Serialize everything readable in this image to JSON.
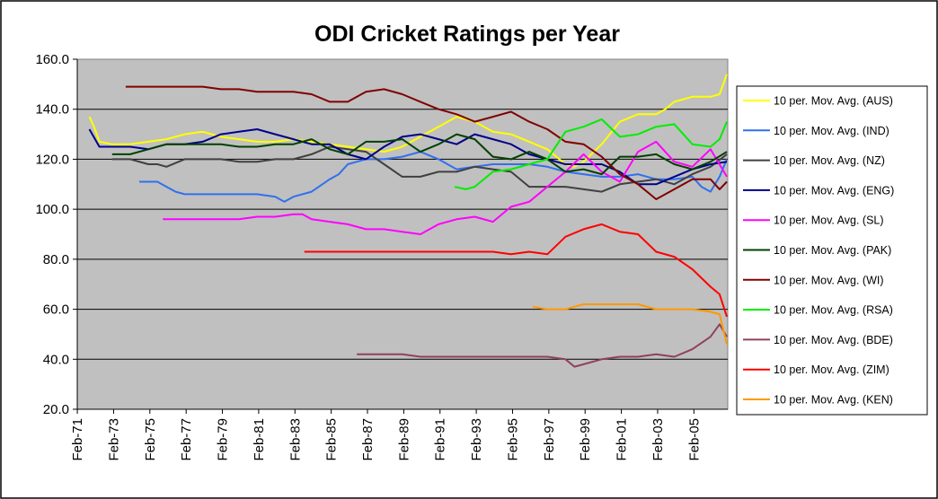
{
  "chart_data": {
    "type": "line",
    "title": "ODI Cricket Ratings per Year",
    "xlabel": "",
    "ylabel": "",
    "ylim": [
      20,
      160
    ],
    "yticks": [
      "20.0",
      "40.0",
      "60.0",
      "80.0",
      "100.0",
      "120.0",
      "140.0",
      "160.0"
    ],
    "xlim": [
      1971.08,
      2006.95
    ],
    "xticks": [
      "Feb-71",
      "Feb-73",
      "Feb-75",
      "Feb-77",
      "Feb-79",
      "Feb-81",
      "Feb-83",
      "Feb-85",
      "Feb-87",
      "Feb-89",
      "Feb-91",
      "Feb-93",
      "Feb-95",
      "Feb-97",
      "Feb-99",
      "Feb-01",
      "Feb-03",
      "Feb-05"
    ],
    "grid": "horizontal",
    "legend_position": "right",
    "plot_background": "#c0c0c0",
    "series": [
      {
        "name": "10 per. Mov. Avg. (AUS)",
        "color": "#ffff00",
        "x": [
          1971.75,
          1972.0,
          1972.3,
          1973.0,
          1974.0,
          1975.0,
          1976.0,
          1977.0,
          1978.0,
          1979.0,
          1980.0,
          1981.0,
          1982.0,
          1983.0,
          1984.0,
          1985.0,
          1986.0,
          1987.0,
          1988.0,
          1989.0,
          1990.0,
          1991.0,
          1992.0,
          1993.0,
          1994.0,
          1995.0,
          1996.0,
          1997.0,
          1997.5,
          1998.0,
          1998.5,
          1999.0,
          2000.0,
          2001.0,
          2002.0,
          2003.0,
          2003.5,
          2004.0,
          2005.0,
          2006.0,
          2006.5,
          2006.9
        ],
        "y": [
          137,
          133,
          127,
          126,
          126,
          127,
          128,
          130,
          131,
          129,
          128,
          127,
          127,
          128,
          127,
          126,
          125,
          124,
          123,
          125,
          129,
          133,
          137,
          135,
          131,
          130,
          127,
          124,
          121,
          118,
          117,
          119,
          126,
          135,
          138,
          138,
          140,
          143,
          145,
          145,
          146,
          154
        ]
      },
      {
        "name": "10 per. Mov. Avg. (IND)",
        "color": "#3070ee",
        "x": [
          1974.5,
          1975.0,
          1975.5,
          1976.0,
          1976.5,
          1977.0,
          1978.0,
          1979.0,
          1980.0,
          1981.0,
          1982.0,
          1982.5,
          1983.0,
          1984.0,
          1985.0,
          1985.5,
          1986.0,
          1986.5,
          1987.0,
          1988.0,
          1989.0,
          1990.0,
          1991.0,
          1992.0,
          1993.0,
          1994.0,
          1995.0,
          1996.0,
          1997.0,
          1998.0,
          1999.0,
          2000.0,
          2001.0,
          2002.0,
          2003.0,
          2004.0,
          2005.0,
          2005.5,
          2006.0,
          2006.5,
          2006.9
        ],
        "y": [
          111,
          111,
          111,
          109,
          107,
          106,
          106,
          106,
          106,
          106,
          105,
          103,
          105,
          107,
          112,
          114,
          118,
          119,
          120,
          120,
          121,
          123,
          120,
          116,
          117,
          118,
          118,
          118,
          117,
          115,
          114,
          113,
          113,
          114,
          112,
          112,
          113,
          109,
          107,
          113,
          120
        ]
      },
      {
        "name": "10 per. Mov. Avg. (NZ)",
        "color": "#404040",
        "x": [
          1973.0,
          1974.0,
          1975.0,
          1975.5,
          1976.0,
          1977.0,
          1978.0,
          1979.0,
          1980.0,
          1981.0,
          1982.0,
          1983.0,
          1984.0,
          1985.0,
          1986.0,
          1987.0,
          1988.0,
          1989.0,
          1990.0,
          1991.0,
          1992.0,
          1993.0,
          1994.0,
          1995.0,
          1996.0,
          1997.0,
          1998.0,
          1999.0,
          2000.0,
          2001.0,
          2002.0,
          2003.0,
          2004.0,
          2005.0,
          2006.0,
          2006.9
        ],
        "y": [
          120,
          120,
          118,
          118,
          117,
          120,
          120,
          120,
          119,
          119,
          120,
          120,
          122,
          125,
          124,
          123,
          118,
          113,
          113,
          115,
          115,
          117,
          116,
          115,
          109,
          109,
          109,
          108,
          107,
          110,
          111,
          112,
          110,
          114,
          117,
          122
        ]
      },
      {
        "name": "10 per. Mov. Avg. (ENG)",
        "color": "#00008b",
        "x": [
          1971.75,
          1972.3,
          1973.0,
          1974.0,
          1975.0,
          1976.0,
          1977.0,
          1978.0,
          1979.0,
          1980.0,
          1981.0,
          1982.0,
          1983.0,
          1984.0,
          1985.0,
          1986.0,
          1987.0,
          1988.0,
          1989.0,
          1990.0,
          1991.0,
          1992.0,
          1993.0,
          1994.0,
          1995.0,
          1996.0,
          1997.0,
          1998.0,
          1999.0,
          2000.0,
          2001.0,
          2002.0,
          2003.0,
          2004.0,
          2005.0,
          2006.0,
          2006.9
        ],
        "y": [
          132,
          125,
          125,
          125,
          124,
          126,
          126,
          127,
          130,
          131,
          132,
          130,
          128,
          126,
          126,
          122,
          120,
          125,
          129,
          130,
          128,
          126,
          130,
          128,
          126,
          122,
          120,
          118,
          118,
          118,
          115,
          110,
          110,
          113,
          116,
          118,
          119
        ]
      },
      {
        "name": "10 per. Mov. Avg. (SL)",
        "color": "#ff00ff",
        "x": [
          1975.8,
          1977.0,
          1978.0,
          1979.0,
          1980.0,
          1981.0,
          1982.0,
          1983.0,
          1983.5,
          1984.0,
          1985.0,
          1986.0,
          1987.0,
          1988.0,
          1989.0,
          1990.0,
          1991.0,
          1992.0,
          1993.0,
          1994.0,
          1995.0,
          1996.0,
          1997.0,
          1998.0,
          1999.0,
          2000.0,
          2001.0,
          2002.0,
          2003.0,
          2004.0,
          2005.0,
          2006.0,
          2006.9
        ],
        "y": [
          96,
          96,
          96,
          96,
          96,
          97,
          97,
          98,
          98,
          96,
          95,
          94,
          92,
          92,
          91,
          90,
          94,
          96,
          97,
          95,
          101,
          103,
          109,
          115,
          122,
          115,
          111,
          123,
          127,
          119,
          117,
          124,
          113
        ]
      },
      {
        "name": "10 per. Mov. Avg. (PAK)",
        "color": "#004000",
        "x": [
          1973.0,
          1974.0,
          1975.0,
          1976.0,
          1977.0,
          1978.0,
          1979.0,
          1980.0,
          1981.0,
          1982.0,
          1983.0,
          1984.0,
          1985.0,
          1986.0,
          1987.0,
          1988.0,
          1989.0,
          1990.0,
          1991.0,
          1992.0,
          1993.0,
          1994.0,
          1995.0,
          1996.0,
          1997.0,
          1998.0,
          1999.0,
          2000.0,
          2001.0,
          2002.0,
          2003.0,
          2004.0,
          2005.0,
          2006.0,
          2006.9
        ],
        "y": [
          122,
          122,
          124,
          126,
          126,
          126,
          126,
          125,
          125,
          126,
          126,
          128,
          124,
          122,
          127,
          127,
          128,
          123,
          126,
          130,
          128,
          121,
          120,
          123,
          120,
          115,
          116,
          114,
          121,
          121,
          122,
          118,
          116,
          119,
          123
        ]
      },
      {
        "name": "10 per. Mov. Avg. (WI)",
        "color": "#800000",
        "x": [
          1973.75,
          1974.0,
          1975.0,
          1976.0,
          1977.0,
          1978.0,
          1979.0,
          1980.0,
          1981.0,
          1982.0,
          1983.0,
          1984.0,
          1985.0,
          1986.0,
          1987.0,
          1988.0,
          1989.0,
          1990.0,
          1991.0,
          1992.0,
          1993.0,
          1994.0,
          1995.0,
          1996.0,
          1997.0,
          1998.0,
          1999.0,
          2000.0,
          2001.0,
          2002.0,
          2003.0,
          2004.0,
          2005.0,
          2006.0,
          2006.5,
          2006.9
        ],
        "y": [
          149,
          149,
          149,
          149,
          149,
          149,
          148,
          148,
          147,
          147,
          147,
          146,
          143,
          143,
          147,
          148,
          146,
          143,
          140,
          138,
          135,
          137,
          139,
          135,
          132,
          127,
          126,
          121,
          114,
          110,
          104,
          108,
          112,
          112,
          108,
          111
        ]
      },
      {
        "name": "10 per. Mov. Avg. (RSA)",
        "color": "#00ee00",
        "x": [
          1991.9,
          1992.5,
          1993.0,
          1994.0,
          1995.0,
          1996.0,
          1997.0,
          1998.0,
          1999.0,
          2000.0,
          2001.0,
          2002.0,
          2003.0,
          2004.0,
          2005.0,
          2006.0,
          2006.5,
          2006.9
        ],
        "y": [
          109,
          108,
          109,
          115,
          116,
          118,
          120,
          131,
          133,
          136,
          129,
          130,
          133,
          134,
          126,
          125,
          128,
          135
        ]
      },
      {
        "name": "10 per. Mov. Avg. (BDE)",
        "color": "#904060",
        "x": [
          1986.5,
          1987.0,
          1988.0,
          1989.0,
          1990.0,
          1991.0,
          1992.0,
          1993.0,
          1994.0,
          1995.0,
          1996.0,
          1997.0,
          1998.0,
          1998.5,
          1999.0,
          2000.0,
          2001.0,
          2002.0,
          2003.0,
          2004.0,
          2005.0,
          2006.0,
          2006.5,
          2006.9
        ],
        "y": [
          42,
          42,
          42,
          42,
          41,
          41,
          41,
          41,
          41,
          41,
          41,
          41,
          40,
          37,
          38,
          40,
          41,
          41,
          42,
          41,
          44,
          49,
          54,
          49
        ]
      },
      {
        "name": "10 per. Mov. Avg. (ZIM)",
        "color": "#ff0000",
        "x": [
          1983.6,
          1984.0,
          1985.0,
          1986.0,
          1987.0,
          1988.0,
          1989.0,
          1990.0,
          1991.0,
          1992.0,
          1993.0,
          1994.0,
          1995.0,
          1996.0,
          1997.0,
          1998.0,
          1999.0,
          2000.0,
          2001.0,
          2002.0,
          2003.0,
          2004.0,
          2005.0,
          2006.0,
          2006.5,
          2006.9
        ],
        "y": [
          83,
          83,
          83,
          83,
          83,
          83,
          83,
          83,
          83,
          83,
          83,
          83,
          82,
          83,
          82,
          89,
          92,
          94,
          91,
          90,
          83,
          81,
          76,
          69,
          66,
          57
        ]
      },
      {
        "name": "10 per. Mov. Avg. (KEN)",
        "color": "#ff9900",
        "x": [
          1996.2,
          1997.0,
          1998.0,
          1999.0,
          2000.0,
          2001.0,
          2002.0,
          2003.0,
          2004.0,
          2005.0,
          2006.0,
          2006.5,
          2006.9
        ],
        "y": [
          61,
          60,
          60,
          62,
          62,
          62,
          62,
          60,
          60,
          60,
          59,
          58,
          46
        ]
      }
    ]
  }
}
